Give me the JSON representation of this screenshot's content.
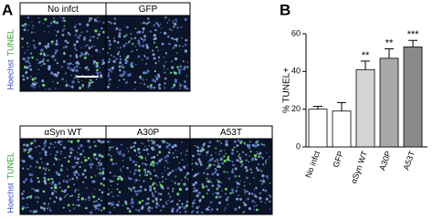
{
  "figure_labels": [
    "A",
    "B"
  ],
  "image_rows": [
    {
      "stain_labels": [
        "Hoechst",
        "TUNEL"
      ],
      "panels": [
        "No infct",
        "GFP"
      ]
    },
    {
      "stain_labels": [
        "Hoechst",
        "TUNEL"
      ],
      "panels": [
        "αSyn WT",
        "A30P",
        "A53T"
      ]
    }
  ],
  "chart_data": {
    "type": "bar",
    "categories": [
      "No infct",
      "GFP",
      "αSyn WT",
      "A30P",
      "A53T"
    ],
    "values": [
      20,
      19,
      41,
      47,
      53
    ],
    "errors": [
      1.5,
      4.5,
      4.5,
      5,
      3.5
    ],
    "colors": [
      "#ffffff",
      "#ffffff",
      "#d4d4d4",
      "#a8a8a8",
      "#8a8a8a"
    ],
    "annotations": [
      null,
      null,
      "**",
      "**",
      "***"
    ],
    "ylabel": "% TUNEL+",
    "ylim": [
      0,
      60
    ],
    "yticks": [
      0,
      20,
      40,
      60
    ]
  }
}
